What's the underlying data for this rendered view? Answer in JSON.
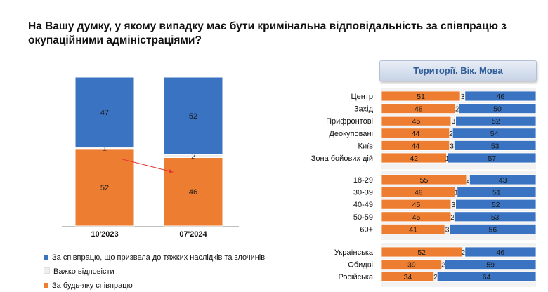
{
  "page": {
    "title": "На Вашу думку, у якому випадку має бути кримінальна відповідальність за співпрацю з окупаційними адміністраціями?"
  },
  "colors": {
    "blue": "#3a73c1",
    "gray": "#eeeeee",
    "orange": "#ed7d31",
    "arrow": "#e53333"
  },
  "legend": [
    {
      "label": "За співпрацю, що призвела до тяжких наслідків та злочинів",
      "color": "#3a73c1"
    },
    {
      "label": "Важко відповісти",
      "color": "#eeeeee"
    },
    {
      "label": "За будь-яку співпрацю",
      "color": "#ed7d31"
    }
  ],
  "panel": {
    "header": "Території. Вік. Мова"
  },
  "chart_data": [
    {
      "type": "bar",
      "stacked": true,
      "categories": [
        "10'2023",
        "07'2024"
      ],
      "series": [
        {
          "name": "За будь-яку співпрацю",
          "values": [
            52,
            46
          ]
        },
        {
          "name": "Важко відповісти",
          "values": [
            1,
            2
          ]
        },
        {
          "name": "За співпрацю, що призвела до тяжких наслідків та злочинів",
          "values": [
            47,
            52
          ]
        }
      ],
      "ylim": [
        0,
        100
      ],
      "legend_position": "bottom",
      "annotation": "arrow"
    },
    {
      "type": "bar",
      "orientation": "horizontal",
      "stacked": true,
      "groups": [
        {
          "rows": [
            {
              "label": "Центр",
              "values": [
                51,
                3,
                46
              ]
            },
            {
              "label": "Захід",
              "values": [
                48,
                2,
                50
              ]
            },
            {
              "label": "Прифронтові",
              "values": [
                45,
                3,
                52
              ]
            },
            {
              "label": "Деокуповані",
              "values": [
                44,
                2,
                54
              ]
            },
            {
              "label": "Київ",
              "values": [
                44,
                3,
                53
              ]
            },
            {
              "label": "Зона бойових дій",
              "values": [
                42,
                1,
                57
              ]
            }
          ]
        },
        {
          "rows": [
            {
              "label": "18-29",
              "values": [
                55,
                2,
                43
              ]
            },
            {
              "label": "30-39",
              "values": [
                48,
                1,
                51
              ]
            },
            {
              "label": "40-49",
              "values": [
                45,
                3,
                52
              ]
            },
            {
              "label": "50-59",
              "values": [
                45,
                2,
                53
              ]
            },
            {
              "label": "60+",
              "values": [
                41,
                3,
                56
              ]
            }
          ]
        },
        {
          "rows": [
            {
              "label": "Українська",
              "values": [
                52,
                2,
                46
              ]
            },
            {
              "label": "Обидві",
              "values": [
                39,
                2,
                59
              ]
            },
            {
              "label": "Російська",
              "values": [
                34,
                2,
                64
              ]
            }
          ]
        }
      ],
      "series": [
        "За будь-яку співпрацю",
        "Важко відповісти",
        "За співпрацю, що призвела до тяжких наслідків та злочинів"
      ],
      "xlim": [
        0,
        100
      ]
    }
  ]
}
